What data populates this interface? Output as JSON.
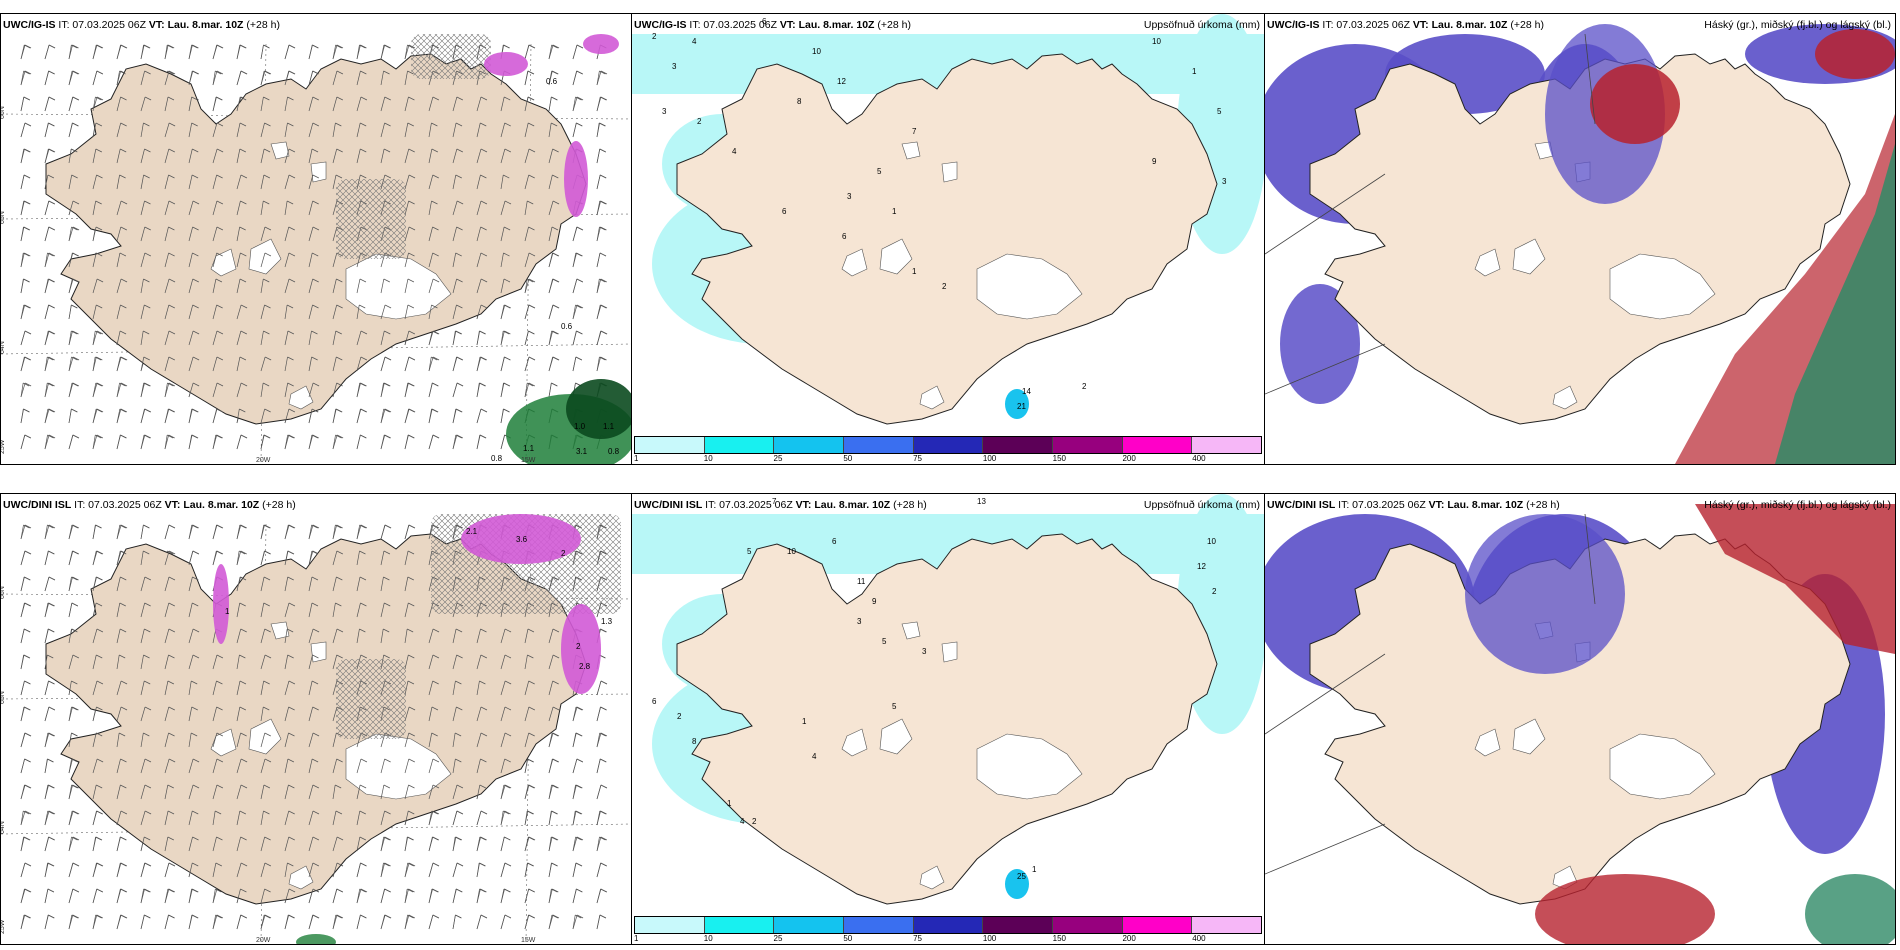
{
  "colors": {
    "land": "#f6e5d4",
    "land_wind_panel": "#e9d7c4",
    "sea": "#ffffff",
    "precip_light": "#b8f7f7",
    "purple_cloud": "#5a4fc8",
    "red_cloud": "#b7222e",
    "green_cloud": "#2f8a66",
    "magenta_precip": "#d25ad6",
    "green_precip": "#1f7f3a",
    "colorbar": [
      "#c8f9fb",
      "#18f0f0",
      "#14c3ef",
      "#3a6ff0",
      "#2428b6",
      "#5c0057",
      "#97007e",
      "#ff00c8",
      "#f6b7f7"
    ]
  },
  "rows": [
    {
      "model": "UWC/IG-IS",
      "run": "IT: 07.03.2025 06Z",
      "vt_label": "VT:",
      "vt_value": "Lau. 8.mar. 10Z",
      "lead": "(+28 h)",
      "wind_values": [
        "0.6",
        "0.6",
        "1.0",
        "1.1",
        "3.1",
        "0.8",
        "0.8",
        "1.1"
      ],
      "precip_values": [
        "2",
        "4",
        "3",
        "3",
        "2",
        "6",
        "10",
        "12",
        "8",
        "4",
        "6",
        "3",
        "5",
        "7",
        "1",
        "1",
        "2",
        "14",
        "21",
        "2",
        "10",
        "1",
        "5",
        "3",
        "9",
        "6"
      ],
      "axis_labels": [
        "66N",
        "65N",
        "64N",
        "25W",
        "20W",
        "15W"
      ]
    },
    {
      "model": "UWC/DINI ISL",
      "run": "IT: 07.03.2025 06Z",
      "vt_label": "VT:",
      "vt_value": "Lau. 8.mar. 10Z",
      "lead": "(+28 h)",
      "wind_values": [
        "2.1",
        "3.6",
        "2",
        "1.3",
        "2",
        "2.8",
        "1"
      ],
      "precip_values": [
        "7",
        "5",
        "10",
        "6",
        "11",
        "9",
        "3",
        "13",
        "10",
        "12",
        "2",
        "5",
        "3",
        "1",
        "4",
        "8",
        "6",
        "2",
        "25",
        "1",
        "2",
        "4",
        "1",
        "5"
      ],
      "axis_labels": [
        "66N",
        "65N",
        "64N",
        "25W",
        "20W",
        "15W"
      ]
    }
  ],
  "precip_title": "Uppsöfnuð úrkoma (mm)",
  "cloud_title": "Háský (gr.), miðský (fj.bl.) og lágský (bl.)",
  "colorbar_ticks": [
    "1",
    "10",
    "25",
    "50",
    "75",
    "100",
    "150",
    "200",
    "400"
  ]
}
